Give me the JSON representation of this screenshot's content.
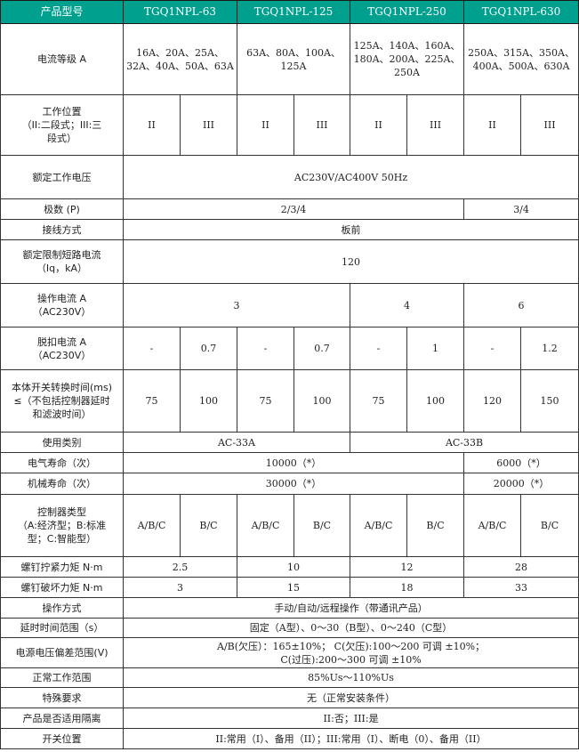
{
  "header_color": "#00a08f",
  "header": [
    "产品型号",
    "TGQ1NPL-63",
    "TGQ1NPL-125",
    "TGQ1NPL-250",
    "TGQ1NPL-630"
  ],
  "rows": [
    {
      "label": "电流等级 A",
      "cells": [
        {
          "text": "16A、20A、25A、\n32A、40A、50A、63A",
          "span": 2
        },
        {
          "text": "63A、80A、100A、\n125A",
          "span": 2
        },
        {
          "text": "125A、140A、160A、\n180A、200A、225A、\n250A",
          "span": 2
        },
        {
          "text": "250A、315A、350A、\n400A、500A、630A",
          "span": 2
        }
      ]
    },
    {
      "label": "工作位置\n（II:二段式；III:三\n段式）",
      "cells": [
        {
          "text": "II"
        },
        {
          "text": "III"
        },
        {
          "text": "II"
        },
        {
          "text": "III"
        },
        {
          "text": "II"
        },
        {
          "text": "III"
        },
        {
          "text": "II"
        },
        {
          "text": "III"
        }
      ]
    },
    {
      "label": "额定工作电压",
      "cells": [
        {
          "text": "AC230V/AC400V 50Hz",
          "span": 8
        }
      ]
    },
    {
      "label": "极数 (P)",
      "cells": [
        {
          "text": "2/3/4",
          "span": 6
        },
        {
          "text": "3/4",
          "span": 2
        }
      ]
    },
    {
      "label": "接线方式",
      "cells": [
        {
          "text": "板前",
          "span": 8
        }
      ]
    },
    {
      "label": "额定限制短路电流\n（Iq，kA）",
      "cells": [
        {
          "text": "120",
          "span": 8
        }
      ]
    },
    {
      "label": "操作电流 A\n（AC230V）",
      "cells": [
        {
          "text": "3",
          "span": 4
        },
        {
          "text": "4",
          "span": 2
        },
        {
          "text": "6",
          "span": 2
        }
      ]
    },
    {
      "label": "脱扣电流 A\n（AC230V）",
      "cells": [
        {
          "text": "-"
        },
        {
          "text": "0.7"
        },
        {
          "text": "-"
        },
        {
          "text": "0.7"
        },
        {
          "text": "-"
        },
        {
          "text": "1"
        },
        {
          "text": "-"
        },
        {
          "text": "1.2"
        }
      ]
    },
    {
      "label": "本体开关转换时间(ms)\n≤（不包括控制器延时\n和滤波时间）",
      "cells": [
        {
          "text": "75"
        },
        {
          "text": "100"
        },
        {
          "text": "75"
        },
        {
          "text": "100"
        },
        {
          "text": "75"
        },
        {
          "text": "100"
        },
        {
          "text": "120"
        },
        {
          "text": "150"
        }
      ]
    },
    {
      "label": "使用类别",
      "cells": [
        {
          "text": "AC-33A",
          "span": 4
        },
        {
          "text": "AC-33B",
          "span": 4
        }
      ]
    },
    {
      "label": "电气寿命（次）",
      "cells": [
        {
          "text": "10000（*）",
          "span": 6
        },
        {
          "text": "6000（*）",
          "span": 2
        }
      ]
    },
    {
      "label": "机械寿命（次）",
      "cells": [
        {
          "text": "30000（*）",
          "span": 6
        },
        {
          "text": "20000（*）",
          "span": 2
        }
      ]
    },
    {
      "label": "控制器类型\n（A:经济型；B:标准\n型；C:智能型）",
      "cells": [
        {
          "text": "A/B/C"
        },
        {
          "text": "B/C"
        },
        {
          "text": "A/B/C"
        },
        {
          "text": "B/C"
        },
        {
          "text": "A/B/C"
        },
        {
          "text": "B/C"
        },
        {
          "text": "A/B/C"
        },
        {
          "text": "B/C"
        }
      ]
    },
    {
      "label": "螺钉拧紧力矩 N·m",
      "cells": [
        {
          "text": "2.5",
          "span": 2
        },
        {
          "text": "10",
          "span": 2
        },
        {
          "text": "12",
          "span": 2
        },
        {
          "text": "28",
          "span": 2
        }
      ]
    },
    {
      "label": "螺钉破坏力矩 N·m",
      "cells": [
        {
          "text": "3",
          "span": 2
        },
        {
          "text": "15",
          "span": 2
        },
        {
          "text": "18",
          "span": 2
        },
        {
          "text": "33",
          "span": 2
        }
      ]
    },
    {
      "label": "操作方式",
      "cells": [
        {
          "text": "手动/自动/远程操作（带通讯产品）",
          "span": 8
        }
      ]
    },
    {
      "label": "延时时间范围（s）",
      "cells": [
        {
          "text": "固定（A型）、0～30（B型）、0～240（C型）",
          "span": 8
        }
      ]
    },
    {
      "label": "电源电压偏差范围(V)",
      "cells": [
        {
          "text": "A/B(欠压）：165±10%； C(欠压):100～200 可调 ±10%；\nC(过压):200～300 可调 ±10%",
          "span": 8
        }
      ]
    },
    {
      "label": "正常工作范围",
      "cells": [
        {
          "text": "85%Us～110%Us",
          "span": 8
        }
      ]
    },
    {
      "label": "特殊要求",
      "cells": [
        {
          "text": "无（正常安装条件）",
          "span": 8
        }
      ]
    },
    {
      "label": "产品是否适用隔离",
      "cells": [
        {
          "text": "II:否；III:是",
          "span": 8
        }
      ]
    },
    {
      "label": "开关位置",
      "cells": [
        {
          "text": "II:常用（I）、备用（II）；III:常用（I）、断电（0）、备用（II）",
          "span": 8
        }
      ]
    }
  ]
}
